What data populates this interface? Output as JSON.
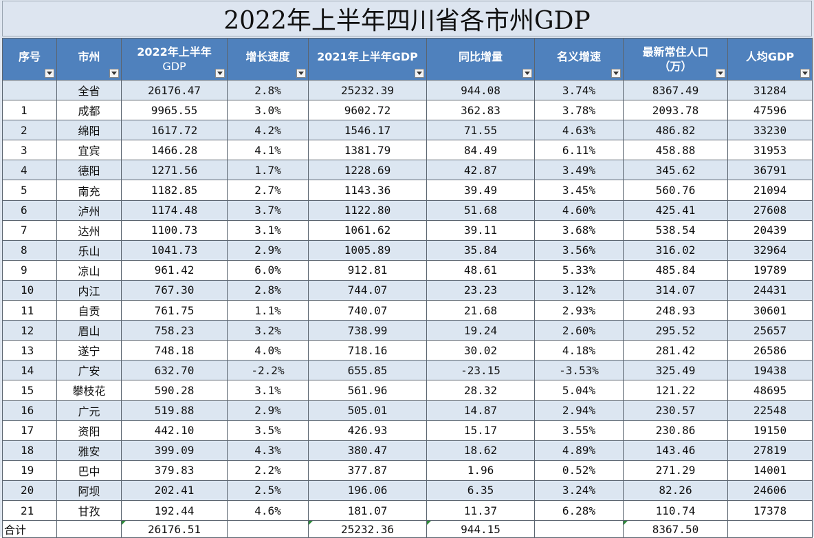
{
  "title": "2022年上半年四川省各市州GDP",
  "headers": {
    "seq": "序号",
    "city": "市州",
    "gdp2022": [
      "2022年上半年",
      "GDP"
    ],
    "growth": "增长速度",
    "gdp2021": "2021年上半年GDP",
    "yoy": "同比增量",
    "nominal": "名义增速",
    "pop": [
      "最新常住人口",
      "（万）"
    ],
    "percap": "人均GDP"
  },
  "rows": [
    {
      "seq": "",
      "city": "全省",
      "gdp2022": "26176.47",
      "growth": "2.8%",
      "gdp2021": "25232.39",
      "yoy": "944.08",
      "nominal": "3.74%",
      "pop": "8367.49",
      "percap": "31284"
    },
    {
      "seq": "1",
      "city": "成都",
      "gdp2022": "9965.55",
      "growth": "3.0%",
      "gdp2021": "9602.72",
      "yoy": "362.83",
      "nominal": "3.78%",
      "pop": "2093.78",
      "percap": "47596"
    },
    {
      "seq": "2",
      "city": "绵阳",
      "gdp2022": "1617.72",
      "growth": "4.2%",
      "gdp2021": "1546.17",
      "yoy": "71.55",
      "nominal": "4.63%",
      "pop": "486.82",
      "percap": "33230"
    },
    {
      "seq": "3",
      "city": "宜宾",
      "gdp2022": "1466.28",
      "growth": "4.1%",
      "gdp2021": "1381.79",
      "yoy": "84.49",
      "nominal": "6.11%",
      "pop": "458.88",
      "percap": "31953"
    },
    {
      "seq": "4",
      "city": "德阳",
      "gdp2022": "1271.56",
      "growth": "1.7%",
      "gdp2021": "1228.69",
      "yoy": "42.87",
      "nominal": "3.49%",
      "pop": "345.62",
      "percap": "36791"
    },
    {
      "seq": "5",
      "city": "南充",
      "gdp2022": "1182.85",
      "growth": "2.7%",
      "gdp2021": "1143.36",
      "yoy": "39.49",
      "nominal": "3.45%",
      "pop": "560.76",
      "percap": "21094"
    },
    {
      "seq": "6",
      "city": "泸州",
      "gdp2022": "1174.48",
      "growth": "3.7%",
      "gdp2021": "1122.80",
      "yoy": "51.68",
      "nominal": "4.60%",
      "pop": "425.41",
      "percap": "27608"
    },
    {
      "seq": "7",
      "city": "达州",
      "gdp2022": "1100.73",
      "growth": "3.1%",
      "gdp2021": "1061.62",
      "yoy": "39.11",
      "nominal": "3.68%",
      "pop": "538.54",
      "percap": "20439"
    },
    {
      "seq": "8",
      "city": "乐山",
      "gdp2022": "1041.73",
      "growth": "2.9%",
      "gdp2021": "1005.89",
      "yoy": "35.84",
      "nominal": "3.56%",
      "pop": "316.02",
      "percap": "32964"
    },
    {
      "seq": "9",
      "city": "凉山",
      "gdp2022": "961.42",
      "growth": "6.0%",
      "gdp2021": "912.81",
      "yoy": "48.61",
      "nominal": "5.33%",
      "pop": "485.84",
      "percap": "19789"
    },
    {
      "seq": "10",
      "city": "内江",
      "gdp2022": "767.30",
      "growth": "2.8%",
      "gdp2021": "744.07",
      "yoy": "23.23",
      "nominal": "3.12%",
      "pop": "314.07",
      "percap": "24431"
    },
    {
      "seq": "11",
      "city": "自贡",
      "gdp2022": "761.75",
      "growth": "1.1%",
      "gdp2021": "740.07",
      "yoy": "21.68",
      "nominal": "2.93%",
      "pop": "248.93",
      "percap": "30601"
    },
    {
      "seq": "12",
      "city": "眉山",
      "gdp2022": "758.23",
      "growth": "3.2%",
      "gdp2021": "738.99",
      "yoy": "19.24",
      "nominal": "2.60%",
      "pop": "295.52",
      "percap": "25657"
    },
    {
      "seq": "13",
      "city": "遂宁",
      "gdp2022": "748.18",
      "growth": "4.0%",
      "gdp2021": "718.16",
      "yoy": "30.02",
      "nominal": "4.18%",
      "pop": "281.42",
      "percap": "26586"
    },
    {
      "seq": "14",
      "city": "广安",
      "gdp2022": "632.70",
      "growth": "-2.2%",
      "gdp2021": "655.85",
      "yoy": "-23.15",
      "nominal": "-3.53%",
      "pop": "325.49",
      "percap": "19438"
    },
    {
      "seq": "15",
      "city": "攀枝花",
      "gdp2022": "590.28",
      "growth": "3.1%",
      "gdp2021": "561.96",
      "yoy": "28.32",
      "nominal": "5.04%",
      "pop": "121.22",
      "percap": "48695"
    },
    {
      "seq": "16",
      "city": "广元",
      "gdp2022": "519.88",
      "growth": "2.9%",
      "gdp2021": "505.01",
      "yoy": "14.87",
      "nominal": "2.94%",
      "pop": "230.57",
      "percap": "22548"
    },
    {
      "seq": "17",
      "city": "资阳",
      "gdp2022": "442.10",
      "growth": "3.5%",
      "gdp2021": "426.93",
      "yoy": "15.17",
      "nominal": "3.55%",
      "pop": "230.86",
      "percap": "19150"
    },
    {
      "seq": "18",
      "city": "雅安",
      "gdp2022": "399.09",
      "growth": "4.3%",
      "gdp2021": "380.47",
      "yoy": "18.62",
      "nominal": "4.89%",
      "pop": "143.46",
      "percap": "27819"
    },
    {
      "seq": "19",
      "city": "巴中",
      "gdp2022": "379.83",
      "growth": "2.2%",
      "gdp2021": "377.87",
      "yoy": "1.96",
      "nominal": "0.52%",
      "pop": "271.29",
      "percap": "14001"
    },
    {
      "seq": "20",
      "city": "阿坝",
      "gdp2022": "202.41",
      "growth": "2.5%",
      "gdp2021": "196.06",
      "yoy": "6.35",
      "nominal": "3.24%",
      "pop": "82.26",
      "percap": "24606"
    },
    {
      "seq": "21",
      "city": "甘孜",
      "gdp2022": "192.44",
      "growth": "4.6%",
      "gdp2021": "181.07",
      "yoy": "11.37",
      "nominal": "6.28%",
      "pop": "110.74",
      "percap": "17378"
    }
  ],
  "total": {
    "label": "合计",
    "gdp2022": "26176.51",
    "growth": "",
    "gdp2021": "25232.36",
    "yoy": "944.15",
    "nominal": "",
    "pop": "8367.50",
    "percap": ""
  },
  "colors": {
    "header_bg": "#4f81bd",
    "band": "#dce6f1",
    "title_bg": "#dde5f0",
    "formula_marker": "#2e8b3a"
  }
}
